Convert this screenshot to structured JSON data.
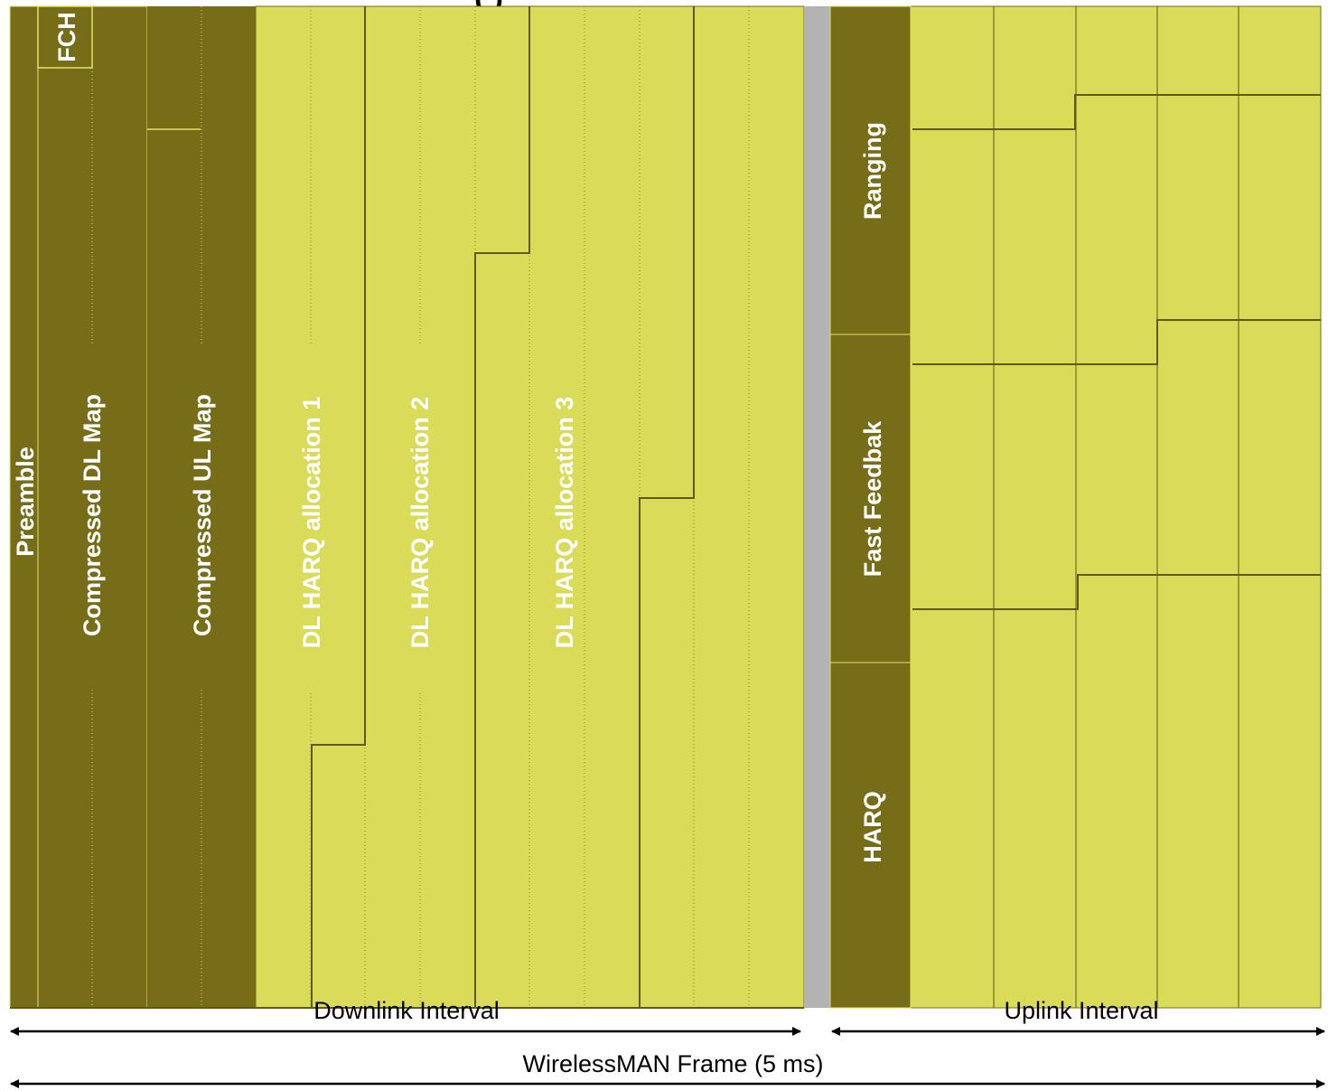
{
  "title_fragment": "(             )",
  "colors": {
    "dark_olive": "#776d18",
    "yellow": "#dadb58",
    "guard_gray": "#b3b3b3",
    "line": "#5e5a12"
  },
  "downlink": {
    "preamble": "Preamble",
    "fch": "FCH",
    "dl_map": "Compressed DL Map",
    "ul_map": "Compressed UL Map",
    "allocations": [
      "DL HARQ allocation 1",
      "DL HARQ allocation 2",
      "DL HARQ allocation 3"
    ]
  },
  "uplink": {
    "ranging": "Ranging",
    "fast_feedback": "Fast Feedbak",
    "harq": "HARQ"
  },
  "arrows": {
    "downlink_interval": "Downlink Interval",
    "uplink_interval": "Uplink Interval",
    "frame": "WirelessMAN Frame (5 ms)"
  }
}
